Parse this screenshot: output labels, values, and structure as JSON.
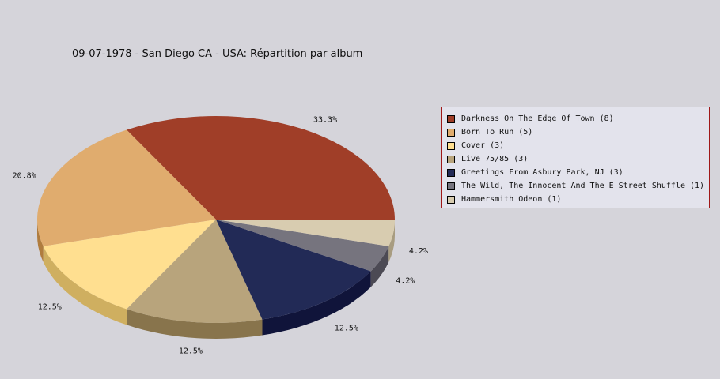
{
  "chart_data": {
    "type": "pie",
    "title": "09-07-1978 - San Diego CA - USA:  Répartition par album",
    "legend_position": "right",
    "slices": [
      {
        "label": "Darkness On The Edge Of Town (8)",
        "value": 8,
        "percent_label": "33.3%",
        "color": "#a03e28",
        "side_color": "#7a1008"
      },
      {
        "label": "Born To Run (5)",
        "value": 5,
        "percent_label": "20.8%",
        "color": "#e0ac6e",
        "side_color": "#b07c3e"
      },
      {
        "label": "Cover (3)",
        "value": 3,
        "percent_label": "12.5%",
        "color": "#ffdf90",
        "side_color": "#cfaf60"
      },
      {
        "label": "Live 75/85 (3)",
        "value": 3,
        "percent_label": "12.5%",
        "color": "#b8a47c",
        "side_color": "#88744c"
      },
      {
        "label": "Greetings From Asbury Park, NJ (3)",
        "value": 3,
        "percent_label": "12.5%",
        "color": "#222a56",
        "side_color": "#10143a"
      },
      {
        "label": "The Wild, The Innocent And The E Street Shuffle (1)",
        "value": 1,
        "percent_label": "4.2%",
        "color": "#76747e",
        "side_color": "#4c4a54"
      },
      {
        "label": "Hammersmith Odeon  (1)",
        "value": 1,
        "percent_label": "4.2%",
        "color": "#d8ccb0",
        "side_color": "#a89c80"
      }
    ]
  }
}
